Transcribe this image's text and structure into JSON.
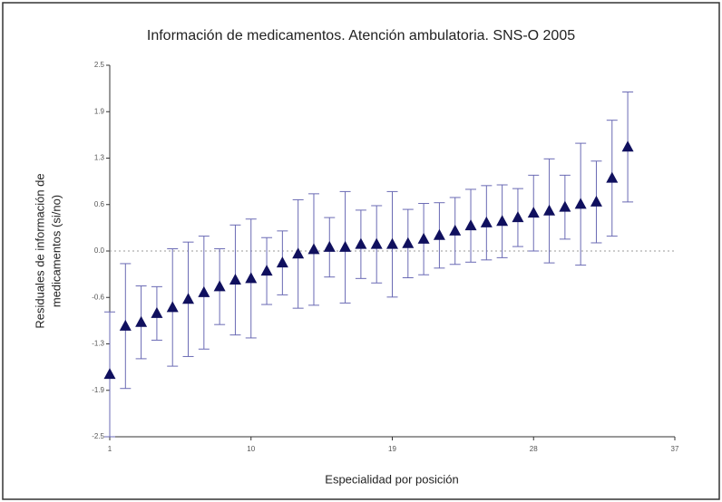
{
  "chart_data": {
    "type": "errorbar",
    "title": "Información de medicamentos. Atención ambulatoria.  SNS-O 2005",
    "xlabel": "Especialidad por posición",
    "ylabel": [
      "Residuales de información de",
      "medicamentos (si/no)"
    ],
    "xlim": [
      1,
      37
    ],
    "xticks": [
      1,
      10,
      19,
      28,
      37
    ],
    "ylim": [
      -2.5,
      2.5
    ],
    "yticks": [
      -2.5,
      {
        "value": -1.875,
        "label": "-1.9"
      },
      {
        "value": -1.25,
        "label": "-1.3"
      },
      {
        "value": -0.625,
        "label": "-0.6"
      },
      {
        "value": 0,
        "label": "0.0"
      },
      {
        "value": 0.625,
        "label": "0.6"
      },
      {
        "value": 1.25,
        "label": "1.3"
      },
      {
        "value": 1.875,
        "label": "1.9"
      },
      2.5
    ],
    "reference_line": 0,
    "series": [
      {
        "color": "#10105e",
        "error_color": "#6a6ab4",
        "x": [
          1,
          2,
          3,
          4,
          5,
          6,
          7,
          8,
          9,
          10,
          11,
          12,
          13,
          14,
          15,
          16,
          17,
          18,
          19,
          20,
          21,
          22,
          23,
          24,
          25,
          26,
          27,
          28,
          29,
          30,
          31,
          32,
          33,
          34
        ],
        "values": [
          -1.66,
          -1.01,
          -0.96,
          -0.84,
          -0.76,
          -0.65,
          -0.56,
          -0.48,
          -0.39,
          -0.37,
          -0.27,
          -0.16,
          -0.04,
          0.02,
          0.05,
          0.05,
          0.09,
          0.09,
          0.09,
          0.1,
          0.16,
          0.21,
          0.27,
          0.34,
          0.38,
          0.4,
          0.45,
          0.51,
          0.54,
          0.59,
          0.63,
          0.66,
          0.98,
          1.4
        ],
        "errors": [
          0.84,
          0.84,
          0.49,
          0.36,
          0.79,
          0.77,
          0.76,
          0.51,
          0.74,
          0.8,
          0.45,
          0.43,
          0.73,
          0.75,
          0.4,
          0.75,
          0.46,
          0.52,
          0.71,
          0.46,
          0.48,
          0.44,
          0.45,
          0.49,
          0.5,
          0.49,
          0.39,
          0.51,
          0.7,
          0.43,
          0.82,
          0.55,
          0.78,
          0.74
        ]
      }
    ]
  }
}
